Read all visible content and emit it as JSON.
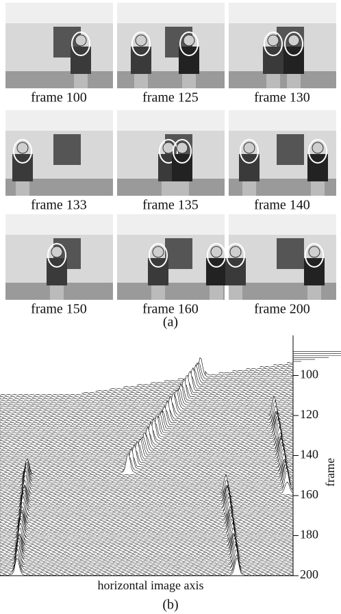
{
  "panel_a": {
    "captions": [
      "frame 100",
      "frame 125",
      "frame 130",
      "frame 133",
      "frame 135",
      "frame 140",
      "frame 150",
      "frame 160",
      "frame 200"
    ],
    "label": "(a)"
  },
  "panel_b": {
    "ylabel": "frame",
    "xlabel": "horizontal image axis",
    "ylim": [
      80,
      200
    ],
    "yticks": [
      100,
      120,
      140,
      160,
      180,
      200
    ],
    "label": "(b)"
  }
}
